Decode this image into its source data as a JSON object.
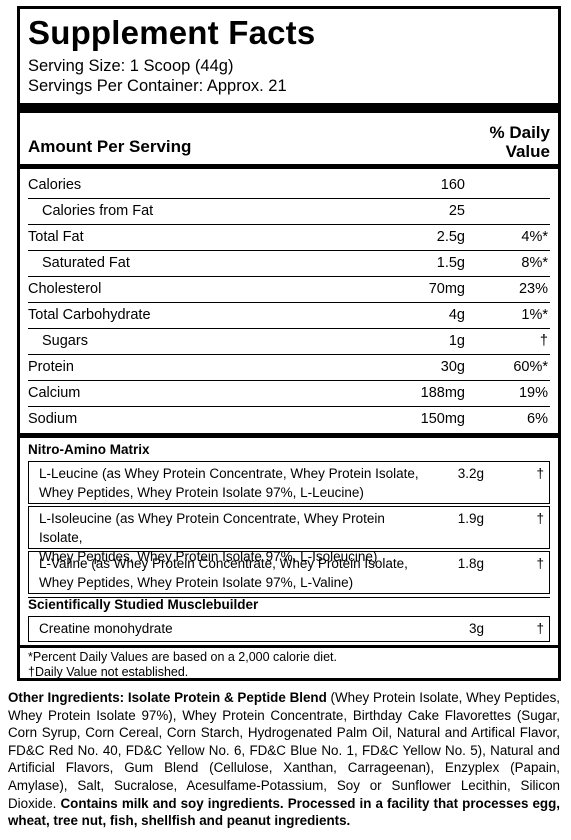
{
  "panel": {
    "title": "Supplement Facts",
    "serving_size": "Serving Size: 1 Scoop (44g)",
    "servings_per_container": "Servings Per Container: Approx. 21",
    "header_amount": "Amount Per Serving",
    "header_dv_line1": "% Daily",
    "header_dv_line2": "Value"
  },
  "nutrients": [
    {
      "name": "Calories",
      "amount": "160",
      "dv": ""
    },
    {
      "name": "Calories from Fat",
      "amount": "25",
      "dv": ""
    },
    {
      "name": "Total Fat",
      "amount": "2.5g",
      "dv": "4%*"
    },
    {
      "name": "Saturated Fat",
      "amount": "1.5g",
      "dv": "8%*"
    },
    {
      "name": "Cholesterol",
      "amount": "70mg",
      "dv": "23%"
    },
    {
      "name": "Total Carbohydrate",
      "amount": "4g",
      "dv": "1%*"
    },
    {
      "name": "Sugars",
      "amount": "1g",
      "dv": "†"
    },
    {
      "name": "Protein",
      "amount": "30g",
      "dv": "60%*"
    },
    {
      "name": "Calcium",
      "amount": "188mg",
      "dv": "19%"
    },
    {
      "name": "Sodium",
      "amount": "150mg",
      "dv": "6%"
    }
  ],
  "blends": {
    "matrix_title": "Nitro-Amino Matrix",
    "matrix": [
      {
        "line1": "L-Leucine (as Whey Protein Concentrate, Whey Protein Isolate,",
        "line2": "Whey Peptides, Whey Protein Isolate 97%, L-Leucine)",
        "amount": "3.2g",
        "dv": "†"
      },
      {
        "line1": "L-Isoleucine  (as  Whey Protein Concentrate, Whey Protein Isolate,",
        "line2": "Whey Peptides, Whey Protein Isolate 97%, L-Isoleucine)",
        "amount": "1.9g",
        "dv": "†"
      },
      {
        "line1": "L-Valine (as  Whey Protein Concentrate, Whey Protein Isolate,",
        "line2": "Whey Peptides, Whey Protein Isolate 97%, L-Valine)",
        "amount": "1.8g",
        "dv": "†"
      }
    ],
    "builder_title": "Scientifically Studied Musclebuilder",
    "builder": {
      "name": "Creatine monohydrate",
      "amount": "3g",
      "dv": "†"
    }
  },
  "footnotes": {
    "percent": "*Percent Daily Values are based on a 2,000 calorie diet.",
    "dagger": "†Daily Value not established."
  },
  "other": {
    "label": "Other Ingredients: Isolate Protein & Peptide Blend",
    "body": " (Whey Protein Isolate, Whey Peptides, Whey Protein Isolate 97%), Whey Protein Concentrate, Birthday Cake Flavorettes (Sugar, Corn Syrup, Corn Cereal, Corn Starch, Hydrogenated Palm Oil, Natural and Artifical Flavor, FD&C Red No. 40, FD&C Yellow No. 6, FD&C Blue No. 1, FD&C Yellow No. 5), Natural and Artificial Flavors, Gum Blend (Cellulose, Xanthan, Carrageenan), Enzyplex (Papain, Amylase), Salt, Sucralose, Acesulfame-Potassium, Soy or Sunflower Lecithin, Silicon Dioxide. ",
    "warning": "Contains milk and soy ingredients. Processed in a facility that processes egg, wheat, tree nut, fish, shellfish and peanut ingredients."
  }
}
